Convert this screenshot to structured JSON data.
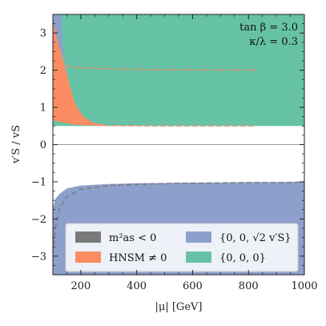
{
  "chart_data": {
    "type": "area",
    "xlabel": "|μ| [GeV]",
    "ylabel": "v′S / vS",
    "xlim": [
      100,
      1000
    ],
    "ylim": [
      -3.5,
      3.5
    ],
    "xticks": [
      200,
      400,
      600,
      800,
      1000
    ],
    "yticks": [
      -3,
      -2,
      -1,
      0,
      1,
      2,
      3
    ],
    "xtick_labels": [
      "200",
      "400",
      "600",
      "800",
      "1000"
    ],
    "ytick_labels": [
      "−3",
      "−2",
      "−1",
      "0",
      "1",
      "2",
      "3"
    ],
    "annotations": [
      "tan β = 3.0",
      "κ/λ = 0.3"
    ],
    "colors": {
      "tachyonic": "#7a7a7a",
      "nsm": "#fc8d62",
      "blue": "#8da0cb",
      "green": "#66c2a5",
      "zero_line": "#999999"
    },
    "legend": {
      "placement": "bottom",
      "entries": [
        {
          "key": "tachyonic",
          "label": "m²as < 0"
        },
        {
          "key": "blue",
          "label": "{0, 0, √2 v′S}"
        },
        {
          "key": "nsm",
          "label": "HNSM ≠ 0"
        },
        {
          "key": "green",
          "label": "{0, 0, 0}"
        }
      ]
    },
    "series": [
      {
        "name": "{0, 0, √2 v′S}",
        "key": "blue",
        "kind": "band-upper",
        "x": [
          100,
          1000
        ],
        "upper": [
          3.5,
          3.5
        ],
        "lower_boundary_x": [
          100,
          150,
          200,
          300,
          400,
          500,
          600,
          700,
          800,
          900,
          1000
        ],
        "lower_boundary_y": [
          2.9,
          2.2,
          1.75,
          1.4,
          1.27,
          1.2,
          1.17,
          1.14,
          1.12,
          1.11,
          1.1
        ]
      },
      {
        "name": "{0, 0, 0}",
        "key": "green",
        "kind": "band-upper",
        "x": [
          100,
          1000
        ],
        "upper": [
          3.5,
          3.5
        ],
        "lower": [
          0.5,
          0.5
        ]
      },
      {
        "name": "HNSM ≠ 0",
        "key": "nsm",
        "kind": "band-upper",
        "upper_x": [
          100,
          120,
          140,
          160,
          175,
          190,
          210,
          240,
          270,
          300
        ],
        "upper_y": [
          3.3,
          2.7,
          2.2,
          1.6,
          1.2,
          0.95,
          0.75,
          0.6,
          0.55,
          0.52
        ],
        "lower_x": [
          100,
          150,
          200,
          300
        ],
        "lower_y": [
          0.65,
          0.57,
          0.53,
          0.5
        ]
      },
      {
        "name": "{0, 0, √2 v′S}",
        "key": "blue",
        "kind": "band-lower",
        "upper_x": [
          100,
          110,
          125,
          150,
          200,
          300,
          400,
          500,
          600,
          700,
          800,
          900,
          1000
        ],
        "upper_y": [
          -1.7,
          -1.45,
          -1.32,
          -1.18,
          -1.1,
          -1.06,
          -1.04,
          -1.03,
          -1.02,
          -1.02,
          -1.01,
          -1.01,
          -1.0
        ],
        "lower": [
          -3.5,
          -3.5
        ]
      }
    ],
    "dashed_lines": [
      {
        "key": "nsm",
        "x": [
          100,
          150,
          200,
          400,
          600,
          830
        ],
        "y": [
          2.35,
          2.12,
          2.06,
          2.02,
          2.01,
          2.0
        ]
      },
      {
        "key": "nsm",
        "x": [
          170,
          300,
          500,
          830
        ],
        "y": [
          0.55,
          0.51,
          0.5,
          0.5
        ]
      },
      {
        "key": "tachyonic",
        "x": [
          100,
          110,
          125,
          150,
          200,
          300,
          400,
          500,
          600,
          700,
          800,
          900,
          1000
        ],
        "y": [
          -2.9,
          -2.2,
          -1.7,
          -1.4,
          -1.2,
          -1.1,
          -1.07,
          -1.05,
          -1.04,
          -1.03,
          -1.02,
          -1.02,
          -1.01
        ]
      }
    ]
  }
}
